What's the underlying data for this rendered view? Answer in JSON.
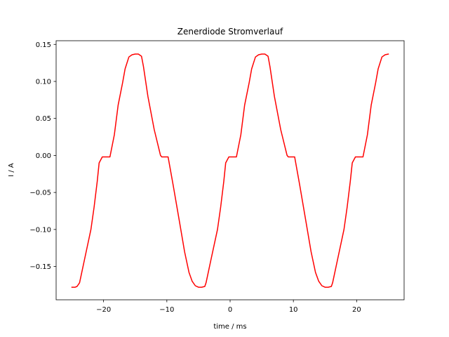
{
  "chart_data": {
    "type": "line",
    "title": "Zenerdiode Stromverlauf",
    "xlabel": "time / ms",
    "ylabel": "I / A",
    "xlim": [
      -27.5,
      27.5
    ],
    "ylim": [
      -0.195,
      0.155
    ],
    "xticks": [
      -20,
      -10,
      0,
      10,
      20
    ],
    "xtick_labels": [
      "−20",
      "−10",
      "0",
      "10",
      "20"
    ],
    "yticks": [
      0.15,
      0.1,
      0.05,
      0.0,
      -0.05,
      -0.1,
      -0.15
    ],
    "ytick_labels": [
      "0.15",
      "0.10",
      "0.05",
      "0.00",
      "−0.05",
      "−0.10",
      "−0.15"
    ],
    "grid": false,
    "series": [
      {
        "color": "#ff0000",
        "x": [
          -25.0,
          -24.5,
          -24.2,
          -23.8,
          -23.0,
          -22.0,
          -21.5,
          -21.0,
          -20.7,
          -20.2,
          -19.5,
          -19.0,
          -18.3,
          -17.7,
          -17.0,
          -16.6,
          -16.0,
          -15.5,
          -15.0,
          -14.5,
          -14.0,
          -13.7,
          -13.0,
          -12.0,
          -11.0,
          -10.8,
          -10.2,
          -9.8,
          -9.0,
          -8.0,
          -7.2,
          -6.5,
          -6.0,
          -5.5,
          -5.0,
          -4.5,
          -4.0,
          -3.8,
          -3.0,
          -2.0,
          -1.5,
          -1.0,
          -0.7,
          -0.2,
          0.5,
          1.0,
          1.7,
          2.3,
          3.0,
          3.4,
          4.0,
          4.5,
          5.0,
          5.5,
          6.0,
          6.3,
          7.0,
          8.0,
          9.0,
          9.2,
          9.8,
          10.2,
          11.0,
          12.0,
          12.8,
          13.5,
          14.0,
          14.5,
          15.0,
          15.5,
          16.0,
          16.2,
          17.0,
          18.0,
          18.5,
          19.0,
          19.3,
          19.8,
          20.5,
          21.0,
          21.7,
          22.3,
          23.0,
          23.4,
          24.0,
          24.5,
          25.0
        ],
        "y": [
          -0.178,
          -0.178,
          -0.177,
          -0.172,
          -0.14,
          -0.1,
          -0.07,
          -0.035,
          -0.01,
          -0.002,
          -0.002,
          -0.002,
          0.028,
          0.068,
          0.098,
          0.117,
          0.133,
          0.136,
          0.137,
          0.137,
          0.134,
          0.12,
          0.08,
          0.035,
          0.0,
          -0.002,
          -0.002,
          -0.002,
          -0.04,
          -0.09,
          -0.13,
          -0.158,
          -0.17,
          -0.176,
          -0.178,
          -0.178,
          -0.177,
          -0.172,
          -0.14,
          -0.1,
          -0.07,
          -0.035,
          -0.01,
          -0.002,
          -0.002,
          -0.002,
          0.028,
          0.068,
          0.098,
          0.117,
          0.133,
          0.136,
          0.137,
          0.137,
          0.134,
          0.12,
          0.08,
          0.035,
          0.0,
          -0.002,
          -0.002,
          -0.002,
          -0.04,
          -0.09,
          -0.13,
          -0.158,
          -0.17,
          -0.176,
          -0.178,
          -0.178,
          -0.177,
          -0.172,
          -0.14,
          -0.1,
          -0.07,
          -0.035,
          -0.01,
          -0.002,
          -0.002,
          -0.002,
          0.028,
          0.068,
          0.098,
          0.117,
          0.133,
          0.136,
          0.137
        ]
      }
    ]
  }
}
